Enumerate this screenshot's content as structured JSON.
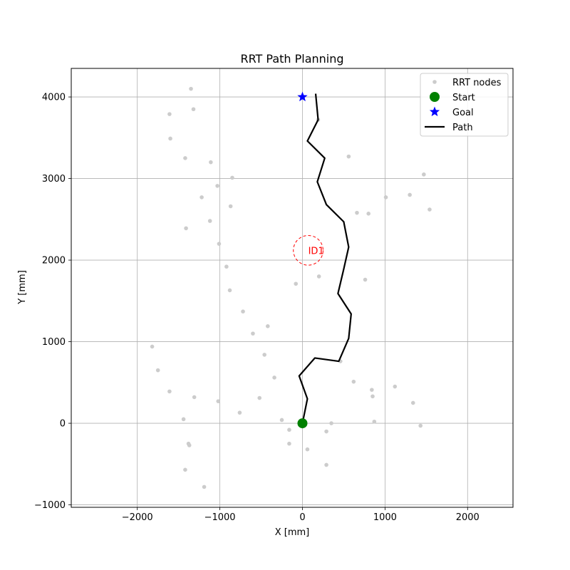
{
  "chart_data": {
    "type": "scatter",
    "title": "RRT Path Planning",
    "xlabel": "X [mm]",
    "ylabel": "Y [mm]",
    "xlim": [
      -2800,
      2550
    ],
    "ylim": [
      -1030,
      4350
    ],
    "xticks": [
      -2000,
      -1000,
      0,
      1000,
      2000
    ],
    "yticks": [
      -1000,
      0,
      1000,
      2000,
      3000,
      4000
    ],
    "xtick_labels": [
      "−2000",
      "−1000",
      "0",
      "1000",
      "2000"
    ],
    "ytick_labels": [
      "−1000",
      "0",
      "1000",
      "2000",
      "3000",
      "4000"
    ],
    "grid": true,
    "legend": {
      "placement": "top-right",
      "entries": [
        "RRT nodes",
        "Start",
        "Goal",
        "Path"
      ]
    },
    "colors": {
      "nodes": "#cccccc",
      "start": "#008000",
      "goal": "#0000ff",
      "path": "#000000",
      "obstacle": "#ff0000",
      "grid": "#b0b0b0"
    },
    "series": [
      {
        "name": "RRT nodes",
        "points": [
          [
            -1350,
            4100
          ],
          [
            -1610,
            3790
          ],
          [
            -1320,
            3850
          ],
          [
            -1600,
            3490
          ],
          [
            -1420,
            3250
          ],
          [
            -1110,
            3200
          ],
          [
            -850,
            3010
          ],
          [
            -1030,
            2910
          ],
          [
            -1220,
            2770
          ],
          [
            -870,
            2660
          ],
          [
            -1410,
            2390
          ],
          [
            -1120,
            2480
          ],
          [
            -1010,
            2200
          ],
          [
            -920,
            1920
          ],
          [
            -880,
            1630
          ],
          [
            -720,
            1370
          ],
          [
            -600,
            1100
          ],
          [
            -420,
            1190
          ],
          [
            -460,
            840
          ],
          [
            -340,
            560
          ],
          [
            -520,
            310
          ],
          [
            -1820,
            940
          ],
          [
            -1750,
            650
          ],
          [
            -1610,
            390
          ],
          [
            -1310,
            320
          ],
          [
            -1020,
            270
          ],
          [
            -760,
            130
          ],
          [
            -1440,
            50
          ],
          [
            -1380,
            -250
          ],
          [
            -1370,
            -270
          ],
          [
            -1420,
            -570
          ],
          [
            -1190,
            -780
          ],
          [
            -250,
            40
          ],
          [
            -160,
            -80
          ],
          [
            -160,
            -250
          ],
          [
            60,
            -320
          ],
          [
            290,
            -100
          ],
          [
            350,
            0
          ],
          [
            290,
            -510
          ],
          [
            190,
            3720
          ],
          [
            -80,
            1710
          ],
          [
            200,
            1800
          ],
          [
            460,
            760
          ],
          [
            620,
            510
          ],
          [
            560,
            3270
          ],
          [
            660,
            2580
          ],
          [
            800,
            2570
          ],
          [
            760,
            1760
          ],
          [
            840,
            410
          ],
          [
            850,
            330
          ],
          [
            870,
            20
          ],
          [
            1010,
            2770
          ],
          [
            1120,
            450
          ],
          [
            1300,
            2800
          ],
          [
            1470,
            3050
          ],
          [
            1540,
            2620
          ],
          [
            1340,
            250
          ],
          [
            1430,
            -30
          ]
        ]
      },
      {
        "name": "Start",
        "points": [
          [
            0,
            0
          ]
        ]
      },
      {
        "name": "Goal",
        "points": [
          [
            0,
            4000
          ]
        ]
      },
      {
        "name": "Path",
        "points": [
          [
            0,
            0
          ],
          [
            60,
            300
          ],
          [
            -40,
            580
          ],
          [
            150,
            800
          ],
          [
            440,
            760
          ],
          [
            560,
            1040
          ],
          [
            590,
            1340
          ],
          [
            430,
            1590
          ],
          [
            500,
            1890
          ],
          [
            560,
            2160
          ],
          [
            500,
            2470
          ],
          [
            290,
            2680
          ],
          [
            180,
            2960
          ],
          [
            270,
            3250
          ],
          [
            60,
            3460
          ],
          [
            190,
            3720
          ],
          [
            160,
            4040
          ]
        ]
      }
    ],
    "obstacles": [
      {
        "label": "ID1",
        "center": [
          70,
          2120
        ],
        "radius": 180
      }
    ]
  }
}
